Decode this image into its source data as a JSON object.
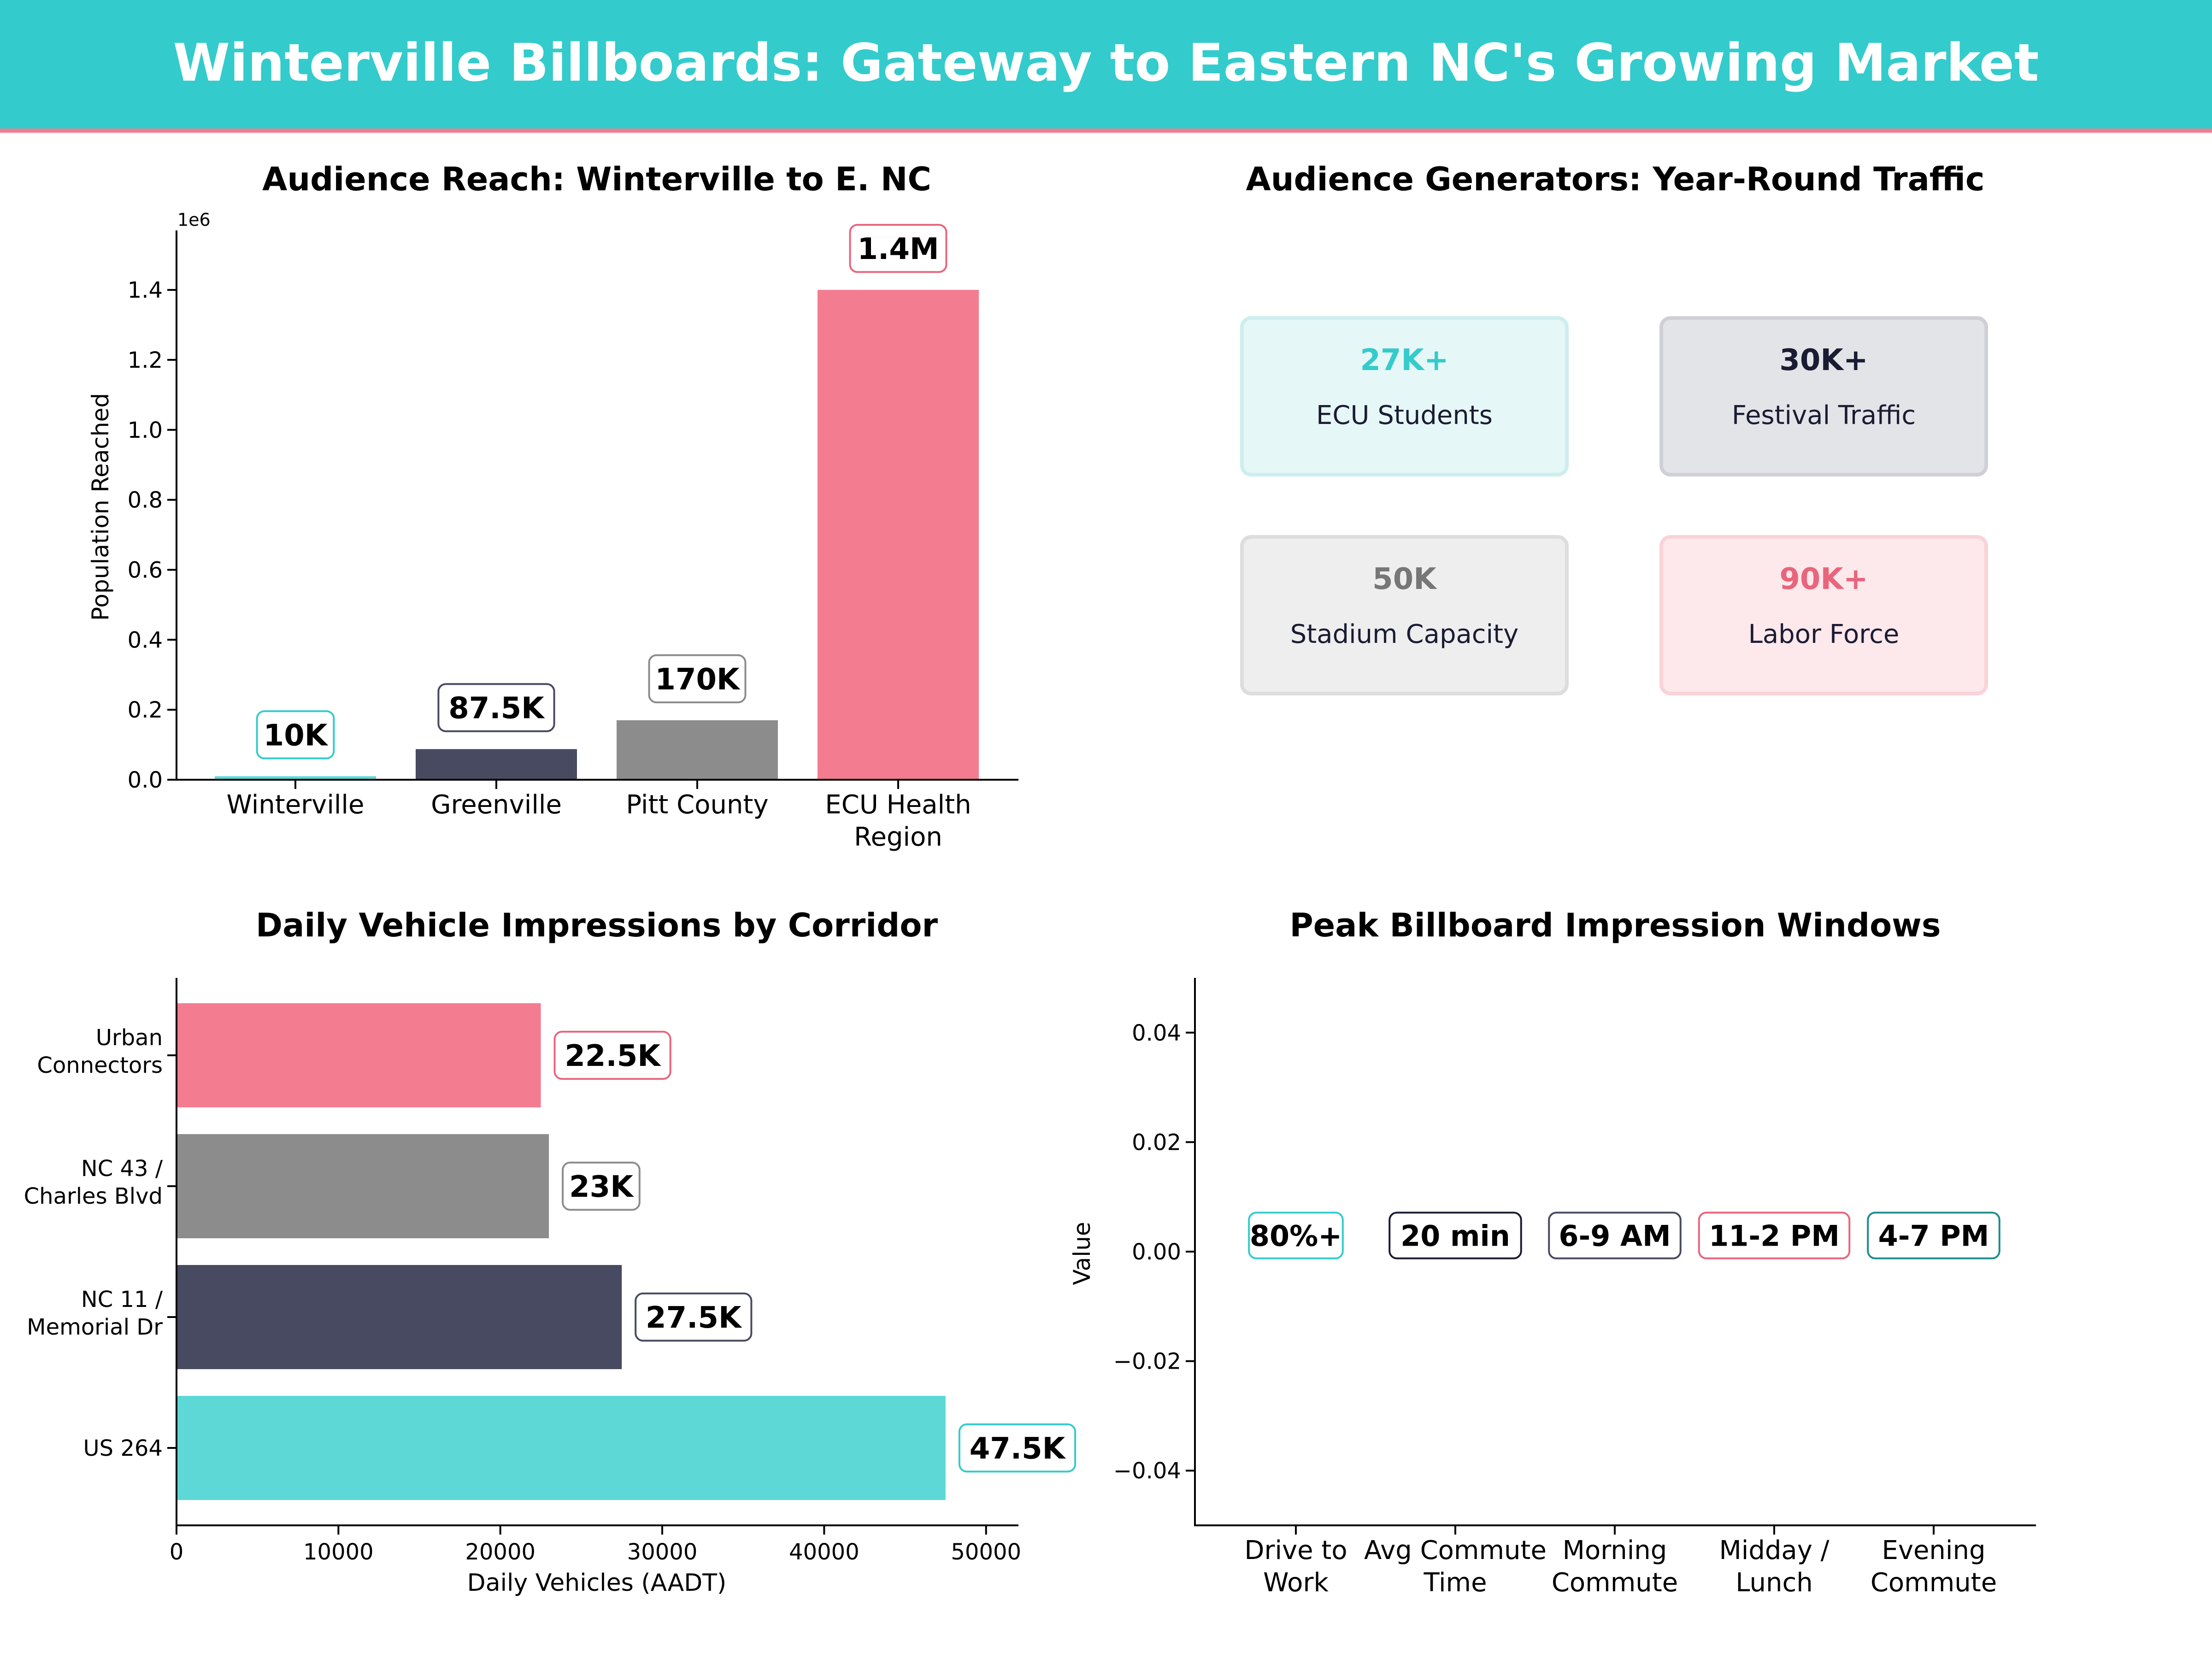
{
  "banner": {
    "title": "Winterville Billboards: Gateway to Eastern NC's Growing Market",
    "bg_color": "#34cbcc",
    "rule_color": "#f47c91"
  },
  "chart_data": [
    {
      "id": "audience-reach",
      "type": "bar",
      "title": "Audience Reach: Winterville to E. NC",
      "xlabel": "",
      "ylabel": "Population Reached",
      "y_scale_note": "1e6",
      "ylim": [
        0,
        1570000
      ],
      "yticks": [
        0,
        200000,
        400000,
        600000,
        800000,
        1000000,
        1200000,
        1400000
      ],
      "ytick_labels": [
        "0.0",
        "0.2",
        "0.4",
        "0.6",
        "0.8",
        "1.0",
        "1.2",
        "1.4"
      ],
      "categories": [
        [
          "Winterville"
        ],
        [
          "Greenville"
        ],
        [
          "Pitt County"
        ],
        [
          "ECU Health",
          "Region"
        ]
      ],
      "values": [
        10000,
        87500,
        170000,
        1400000
      ],
      "value_labels": [
        "10K",
        "87.5K",
        "170K",
        "1.4M"
      ],
      "colors": [
        "#5dd8d6",
        "#474a60",
        "#8c8c8c",
        "#f47c91"
      ],
      "label_border_colors": [
        "#34cbcc",
        "#474a60",
        "#8c8c8c",
        "#e8657c"
      ],
      "grid": false
    },
    {
      "id": "vehicle-impressions",
      "type": "bar",
      "orientation": "horizontal",
      "title": "Daily Vehicle Impressions by Corridor",
      "xlabel": "Daily Vehicles (AADT)",
      "ylabel": "",
      "xlim": [
        0,
        52000
      ],
      "xticks": [
        0,
        10000,
        20000,
        30000,
        40000,
        50000
      ],
      "xtick_labels": [
        "0",
        "10000",
        "20000",
        "30000",
        "40000",
        "50000"
      ],
      "categories": [
        [
          "US 264"
        ],
        [
          "NC 11 /",
          "Memorial Dr"
        ],
        [
          "NC 43 /",
          "Charles Blvd"
        ],
        [
          "Urban",
          "Connectors"
        ]
      ],
      "values": [
        47500,
        27500,
        23000,
        22500
      ],
      "value_labels": [
        "47.5K",
        "27.5K",
        "23K",
        "22.5K"
      ],
      "colors": [
        "#5dd8d6",
        "#474a60",
        "#8c8c8c",
        "#f47c91"
      ],
      "label_border_colors": [
        "#34cbcc",
        "#474a60",
        "#8c8c8c",
        "#e8657c"
      ],
      "grid": false
    },
    {
      "id": "impression-windows",
      "type": "scatter",
      "title": "Peak Billboard Impression Windows",
      "xlabel": "",
      "ylabel": "Value",
      "ylim": [
        -0.05,
        0.05
      ],
      "yticks": [
        -0.04,
        -0.02,
        0.0,
        0.02,
        0.04
      ],
      "ytick_labels": [
        "−0.04",
        "−0.02",
        "0.00",
        "0.02",
        "0.04"
      ],
      "categories": [
        [
          "Drive to",
          "Work"
        ],
        [
          "Avg Commute",
          "Time"
        ],
        [
          "Morning",
          "Commute"
        ],
        [
          "Midday /",
          "Lunch"
        ],
        [
          "Evening",
          "Commute"
        ]
      ],
      "values": [
        0,
        0,
        0,
        0,
        0
      ],
      "value_labels": [
        "80%+",
        "20 min",
        "6-9 AM",
        "11-2 PM",
        "4-7 PM"
      ],
      "label_border_colors": [
        "#34cbcc",
        "#1a1c33",
        "#474a60",
        "#e8657c",
        "#1f8c8c"
      ],
      "grid": false
    }
  ],
  "generators": {
    "title": "Audience Generators: Year-Round Traffic",
    "cards": [
      {
        "value": "27K+",
        "label": "ECU Students",
        "value_color": "#34cbcc",
        "bg": "#e6f7f7",
        "border": "#cdeeee"
      },
      {
        "value": "30K+",
        "label": "Festival Traffic",
        "value_color": "#1a1c33",
        "bg": "#e3e4e8",
        "border": "#cfd0d6"
      },
      {
        "value": "50K",
        "label": "Stadium Capacity",
        "value_color": "#777777",
        "bg": "#eeeeee",
        "border": "#dddddd"
      },
      {
        "value": "90K+",
        "label": "Labor Force",
        "value_color": "#e8657c",
        "bg": "#fde8eb",
        "border": "#f9d3d9"
      }
    ]
  }
}
